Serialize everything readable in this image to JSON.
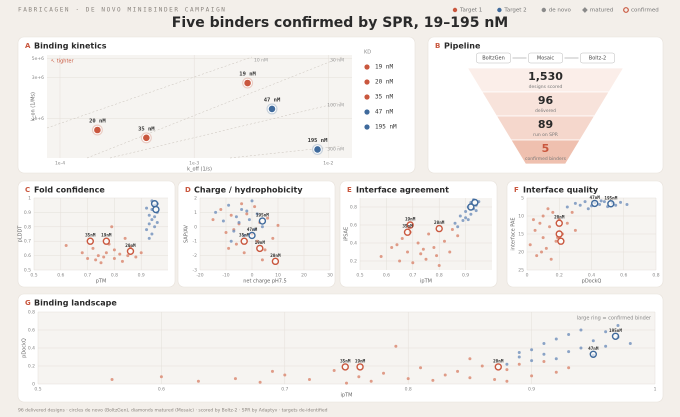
{
  "header": {
    "kicker": "FABRICAGEN · DE NOVO MINIBINDER CAMPAIGN",
    "title": "Five binders confirmed by SPR, 19–195 nM",
    "legend": [
      {
        "label": "Target 1",
        "color": "#c9573e",
        "marker": "dot"
      },
      {
        "label": "Target 2",
        "color": "#3f6a9c",
        "marker": "dot"
      },
      {
        "label": "de novo",
        "color": "#8a8a8a",
        "marker": "dot"
      },
      {
        "label": "matured",
        "color": "#8a8a8a",
        "marker": "diamond"
      },
      {
        "label": "confirmed",
        "color": "#c9573e",
        "marker": "ring"
      }
    ]
  },
  "chart_data": [
    {
      "type": "scatter",
      "label": "A",
      "title": "Binding kinetics",
      "xlabel": "k_off (1/s)",
      "ylabel": "k_on (1/Ms)",
      "log_x": true,
      "log_y": true,
      "xlim": [
        8e-05,
        0.015
      ],
      "ylim": [
        350000,
        5500000
      ],
      "xticks": [
        {
          "value": 0.0001,
          "label": "1e-4"
        },
        {
          "value": 0.001,
          "label": "1e-3"
        },
        {
          "value": 0.01,
          "label": "1e-2"
        }
      ],
      "yticks": [
        {
          "value": 1000000,
          "label": "1e+6"
        },
        {
          "value": 3000000,
          "label": "3e+6"
        },
        {
          "value": 5000000,
          "label": "5e+6"
        }
      ],
      "grid": true,
      "annotation": "↖ tighter",
      "iso_labels": [
        "10 nM",
        "30 nM",
        "100 nM",
        "300 nM"
      ],
      "legend_title": "KD",
      "series": [
        {
          "name": "19 nM",
          "color": "#c9573e",
          "marker": "ring",
          "x": [
            0.0025
          ],
          "values": [
            2600000
          ]
        },
        {
          "name": "20 nM",
          "color": "#c9573e",
          "marker": "ring",
          "x": [
            0.00019
          ],
          "values": [
            740000
          ]
        },
        {
          "name": "35 nM",
          "color": "#c9573e",
          "marker": "ring",
          "x": [
            0.00044
          ],
          "values": [
            600000
          ]
        },
        {
          "name": "47 nM",
          "color": "#3f6a9c",
          "marker": "ring",
          "x": [
            0.0038
          ],
          "values": [
            1300000
          ]
        },
        {
          "name": "195 nM",
          "color": "#3f6a9c",
          "marker": "ring",
          "x": [
            0.0083
          ],
          "values": [
            440000
          ]
        }
      ]
    },
    {
      "type": "funnel",
      "label": "B",
      "title": "Pipeline",
      "steps": [
        "BoltzGen",
        "Mosaic",
        "Boltz-2"
      ],
      "categories": [
        "designs scored",
        "delivered",
        "run on SPR",
        "confirmed binders"
      ],
      "values": [
        1530,
        96,
        89,
        5
      ],
      "value_labels": [
        "1,530",
        "96",
        "89",
        "5"
      ]
    },
    {
      "type": "scatter",
      "label": "C",
      "title": "Fold confidence",
      "xlabel": "pTM",
      "ylabel": "pLDDT",
      "xlim": [
        0.5,
        1
      ],
      "ylim": [
        0.5,
        1
      ],
      "xticks": [
        0.5,
        0.6,
        0.7,
        0.8,
        0.9
      ],
      "yticks": [
        0.5,
        0.6,
        0.7,
        0.8,
        0.9,
        1
      ],
      "grid": true,
      "series": [
        {
          "color": "#d9846d",
          "marker": "dot",
          "x": [
            0.62,
            0.68,
            0.7,
            0.72,
            0.74,
            0.75,
            0.77,
            0.78,
            0.8,
            0.8,
            0.82,
            0.83,
            0.85,
            0.86,
            0.88,
            0.79,
            0.84,
            0.73,
            0.9,
            0.76
          ],
          "values": [
            0.67,
            0.62,
            0.58,
            0.65,
            0.6,
            0.55,
            0.62,
            0.68,
            0.58,
            0.64,
            0.61,
            0.56,
            0.6,
            0.66,
            0.59,
            0.8,
            0.72,
            0.57,
            0.62,
            0.59
          ]
        },
        {
          "color": "#6f8fbb",
          "marker": "dot",
          "x": [
            0.92,
            0.93,
            0.93,
            0.94,
            0.94,
            0.94,
            0.95,
            0.95,
            0.95,
            0.96,
            0.96,
            0.92,
            0.94,
            0.96,
            0.93
          ],
          "values": [
            0.78,
            0.82,
            0.88,
            0.75,
            0.85,
            0.92,
            0.8,
            0.87,
            0.95,
            0.9,
            0.83,
            0.93,
            0.98,
            0.96,
            0.72
          ]
        },
        {
          "color": "#c9573e",
          "marker": "ring",
          "x": [
            0.71,
            0.77,
            0.86
          ],
          "values": [
            0.7,
            0.7,
            0.63
          ],
          "labels": [
            "35nM",
            "19nM",
            "20nM"
          ]
        },
        {
          "color": "#3f6a9c",
          "marker": "ring",
          "x": [
            0.95,
            0.955
          ],
          "values": [
            0.96,
            0.92
          ]
        }
      ]
    },
    {
      "type": "scatter",
      "label": "D",
      "title": "Charge / hydrophobicity",
      "xlabel": "net charge pH7.5",
      "ylabel": "SAP/AV",
      "xlim": [
        -20,
        30
      ],
      "ylim": [
        -3,
        2
      ],
      "xticks": [
        -20,
        -10,
        0,
        10,
        20,
        30
      ],
      "yticks": [
        -3,
        -2,
        -1,
        0,
        1,
        2
      ],
      "grid": true,
      "series": [
        {
          "color": "#d9846d",
          "marker": "dot",
          "x": [
            -15,
            -12,
            -10,
            -8,
            -6,
            -5,
            -3,
            -2,
            0,
            1,
            2,
            3,
            5,
            6,
            8,
            -9,
            -4,
            4,
            10,
            -7
          ],
          "values": [
            0.5,
            1.2,
            -0.4,
            0.8,
            -1.2,
            0.2,
            -1.8,
            0.9,
            -0.5,
            1.4,
            -1.0,
            0.3,
            -1.6,
            0.6,
            -0.8,
            -1.5,
            1.6,
            -2.3,
            0.1,
            -0.2
          ]
        },
        {
          "color": "#6f8fbb",
          "marker": "dot",
          "x": [
            -14,
            -11,
            -9,
            -7,
            -6,
            -4,
            -3,
            -1,
            0,
            1,
            2,
            4,
            -8,
            -5,
            -2
          ],
          "values": [
            1.0,
            0.4,
            1.5,
            -0.3,
            0.7,
            1.2,
            -0.6,
            0.5,
            1.8,
            -0.2,
            0.9,
            0.0,
            -1.0,
            0.3,
            1.1
          ]
        },
        {
          "color": "#c9573e",
          "marker": "ring",
          "x": [
            3,
            9,
            -3
          ],
          "values": [
            -1.5,
            -2.4,
            -1.0
          ],
          "labels": [
            "19nM",
            "20nM",
            "35nM"
          ]
        },
        {
          "color": "#3f6a9c",
          "marker": "ring",
          "x": [
            4,
            0
          ],
          "values": [
            0.4,
            -0.6
          ],
          "labels": [
            "195nM",
            "47nM"
          ]
        }
      ]
    },
    {
      "type": "scatter",
      "label": "E",
      "title": "Interface agreement",
      "xlabel": "ipTM",
      "ylabel": "iPSAE",
      "xlim": [
        0.5,
        1
      ],
      "ylim": [
        0.1,
        0.9
      ],
      "xticks": [
        0.5,
        0.6,
        0.7,
        0.8,
        0.9
      ],
      "yticks": [
        0.2,
        0.4,
        0.6,
        0.8
      ],
      "grid": true,
      "series": [
        {
          "color": "#d9846d",
          "marker": "dot",
          "x": [
            0.58,
            0.62,
            0.65,
            0.66,
            0.68,
            0.7,
            0.72,
            0.73,
            0.75,
            0.76,
            0.78,
            0.8,
            0.82,
            0.84,
            0.85,
            0.87,
            0.74,
            0.69,
            0.79,
            0.64
          ],
          "values": [
            0.25,
            0.35,
            0.2,
            0.45,
            0.3,
            0.18,
            0.4,
            0.28,
            0.22,
            0.5,
            0.35,
            0.15,
            0.42,
            0.3,
            0.55,
            0.48,
            0.33,
            0.52,
            0.26,
            0.38
          ]
        },
        {
          "color": "#6f8fbb",
          "marker": "dot",
          "x": [
            0.86,
            0.88,
            0.89,
            0.9,
            0.9,
            0.91,
            0.92,
            0.92,
            0.93,
            0.93,
            0.94,
            0.95,
            0.87,
            0.91,
            0.94
          ],
          "values": [
            0.62,
            0.7,
            0.65,
            0.75,
            0.68,
            0.8,
            0.72,
            0.85,
            0.78,
            0.88,
            0.82,
            0.86,
            0.58,
            0.66,
            0.76
          ]
        },
        {
          "color": "#c9573e",
          "marker": "ring",
          "x": [
            0.69,
            0.68,
            0.8
          ],
          "values": [
            0.6,
            0.52,
            0.56
          ],
          "labels": [
            "19nM",
            "35nM",
            "20nM"
          ]
        },
        {
          "color": "#3f6a9c",
          "marker": "ring",
          "x": [
            0.92,
            0.935
          ],
          "values": [
            0.8,
            0.85
          ]
        }
      ]
    },
    {
      "type": "scatter",
      "label": "F",
      "title": "Interface quality",
      "xlabel": "pDockQ",
      "ylabel": "interface PAE",
      "xlim": [
        0,
        0.8
      ],
      "ylim": [
        25,
        5
      ],
      "xticks": [
        0,
        0.2,
        0.4,
        0.6,
        0.8
      ],
      "yticks": [
        5,
        10,
        15,
        20,
        25
      ],
      "grid": true,
      "series": [
        {
          "color": "#d9846d",
          "marker": "dot",
          "x": [
            0.02,
            0.05,
            0.06,
            0.08,
            0.1,
            0.1,
            0.12,
            0.14,
            0.15,
            0.16,
            0.18,
            0.2,
            0.22,
            0.25,
            0.28,
            0.3,
            0.04,
            0.09,
            0.13,
            0.19
          ],
          "values": [
            18,
            14,
            21,
            12,
            16,
            10,
            19,
            13,
            22,
            9,
            17,
            11,
            15,
            12,
            9,
            14,
            11,
            20,
            8,
            16
          ]
        },
        {
          "color": "#6f8fbb",
          "marker": "dot",
          "x": [
            0.25,
            0.3,
            0.33,
            0.36,
            0.4,
            0.42,
            0.45,
            0.48,
            0.5,
            0.53,
            0.55,
            0.58,
            0.62,
            0.38,
            0.46
          ],
          "values": [
            7.5,
            6.5,
            7,
            6,
            7.2,
            6.3,
            6.8,
            6,
            7.4,
            6.4,
            7,
            6.2,
            6.8,
            8,
            5.8
          ]
        },
        {
          "color": "#c9573e",
          "marker": "ring",
          "x": [
            0.2,
            0.2,
            0.21
          ],
          "values": [
            12,
            15,
            17
          ],
          "labels": [
            "20nM",
            null,
            null
          ]
        },
        {
          "color": "#3f6a9c",
          "marker": "ring",
          "x": [
            0.42,
            0.52
          ],
          "values": [
            6.5,
            6.6
          ],
          "labels": [
            "47nM",
            "195nM"
          ]
        }
      ]
    },
    {
      "type": "scatter",
      "label": "G",
      "title": "Binding landscape",
      "xlabel": "ipTM",
      "ylabel": "pDockQ",
      "annotation": "large ring = confirmed binder",
      "xlim": [
        0.5,
        1
      ],
      "ylim": [
        0,
        0.8
      ],
      "xticks": [
        0.5,
        0.6,
        0.7,
        0.8,
        0.9,
        1
      ],
      "yticks": [
        0,
        0.2,
        0.4,
        0.6,
        0.8
      ],
      "grid": true,
      "series": [
        {
          "color": "#d9846d",
          "marker": "dot",
          "x": [
            0.56,
            0.6,
            0.63,
            0.66,
            0.68,
            0.7,
            0.72,
            0.74,
            0.76,
            0.77,
            0.78,
            0.8,
            0.81,
            0.82,
            0.83,
            0.84,
            0.85,
            0.86,
            0.87,
            0.88,
            0.89,
            0.9,
            0.91,
            0.92,
            0.93,
            0.79,
            0.75,
            0.69,
            0.85,
            0.88
          ],
          "values": [
            0.05,
            0.08,
            0.03,
            0.06,
            0.02,
            0.1,
            0.05,
            0.15,
            0.08,
            0.03,
            0.12,
            0.06,
            0.18,
            0.04,
            0.1,
            0.14,
            0.07,
            0.2,
            0.05,
            0.16,
            0.22,
            0.09,
            0.25,
            0.13,
            0.18,
            0.42,
            0.01,
            0.14,
            0.28,
            0.03
          ]
        },
        {
          "color": "#6f8fbb",
          "marker": "dot",
          "x": [
            0.88,
            0.89,
            0.9,
            0.9,
            0.91,
            0.91,
            0.92,
            0.92,
            0.93,
            0.93,
            0.94,
            0.94,
            0.95,
            0.95,
            0.96,
            0.96,
            0.97,
            0.97,
            0.98,
            0.89
          ],
          "values": [
            0.22,
            0.3,
            0.26,
            0.38,
            0.33,
            0.45,
            0.28,
            0.5,
            0.36,
            0.55,
            0.4,
            0.6,
            0.32,
            0.48,
            0.58,
            0.42,
            0.52,
            0.65,
            0.45,
            0.35
          ]
        },
        {
          "color": "#c9573e",
          "marker": "ring",
          "x": [
            0.749,
            0.761,
            0.873
          ],
          "values": [
            0.19,
            0.19,
            0.19
          ],
          "labels": [
            "35nM",
            "19nM",
            "20nM"
          ]
        },
        {
          "color": "#3f6a9c",
          "marker": "ring",
          "x": [
            0.95,
            0.968
          ],
          "values": [
            0.33,
            0.53
          ],
          "labels": [
            "47nM",
            "195nM"
          ]
        }
      ]
    }
  ],
  "footer": "96 delivered designs · circles de novo (BoltzGen), diamonds matured (Mosaic) · scored by Boltz-2 · SPR by Adaptyv · targets de-identified"
}
